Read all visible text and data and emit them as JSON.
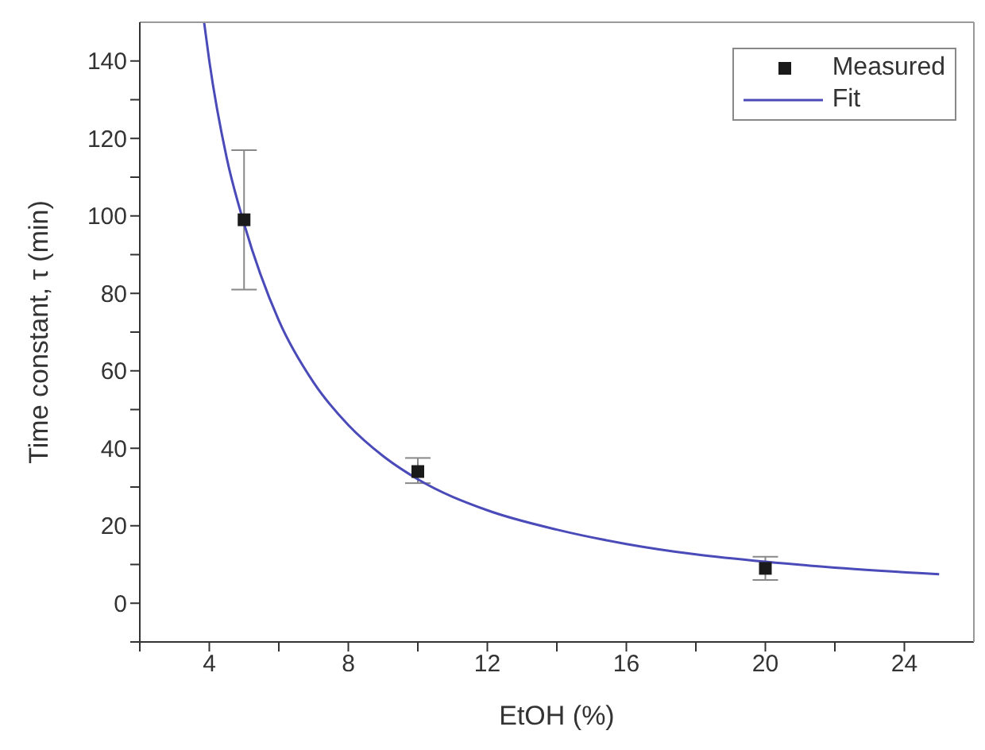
{
  "chart_data": {
    "type": "scatter",
    "xlabel": "EtOH (%)",
    "ylabel": "Time constant, τ (min)",
    "xlim": [
      2,
      26
    ],
    "ylim": [
      -10,
      150
    ],
    "xticks": [
      {
        "value": 2,
        "label": null
      },
      4,
      {
        "value": 6,
        "label": null
      },
      8,
      {
        "value": 10,
        "label": null
      },
      12,
      {
        "value": 14,
        "label": null
      },
      16,
      {
        "value": 18,
        "label": null
      },
      20,
      {
        "value": 22,
        "label": null
      },
      24
    ],
    "yticks": [
      {
        "value": -10,
        "label": null
      },
      0,
      {
        "value": 10,
        "label": null
      },
      20,
      {
        "value": 30,
        "label": null
      },
      40,
      {
        "value": 50,
        "label": null
      },
      60,
      {
        "value": 70,
        "label": null
      },
      80,
      {
        "value": 90,
        "label": null
      },
      100,
      {
        "value": 110,
        "label": null
      },
      120,
      {
        "value": 130,
        "label": null
      },
      140
    ],
    "legend": "top right",
    "series": [
      {
        "name": "Measured",
        "color": "#1a1a1a",
        "marker": "square",
        "x": [
          5,
          10,
          20
        ],
        "values": [
          99,
          34,
          9
        ],
        "errors": [
          [
            81,
            117
          ],
          [
            31,
            37.5
          ],
          [
            6,
            12
          ]
        ]
      },
      {
        "name": "Fit",
        "type": "line",
        "color": "#4a4ab8",
        "marker": "none",
        "line_style": "solid",
        "x": [
          3.85,
          4,
          4.5,
          5,
          6,
          7,
          8,
          9,
          10,
          12,
          14,
          16,
          18,
          20,
          22,
          25
        ],
        "values": [
          150,
          140,
          115,
          98,
          73,
          57,
          46,
          38,
          32,
          24,
          19,
          15.3,
          12.6,
          10.7,
          9.2,
          7.5
        ]
      }
    ]
  }
}
